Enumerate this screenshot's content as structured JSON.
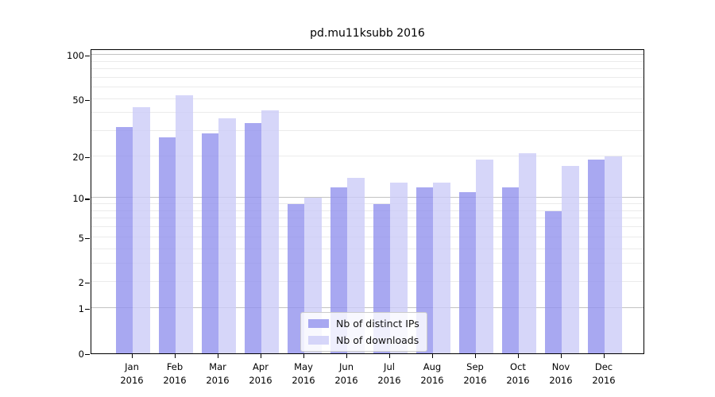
{
  "title": "pd.mu11ksubb 2016",
  "chart_data": {
    "type": "bar",
    "title": "pd.mu11ksubb 2016",
    "categories": [
      "Jan 2016",
      "Feb 2016",
      "Mar 2016",
      "Apr 2016",
      "May 2016",
      "Jun 2016",
      "Jul 2016",
      "Aug 2016",
      "Sep 2016",
      "Oct 2016",
      "Nov 2016",
      "Dec 2016"
    ],
    "x_tick_month": [
      "Jan",
      "Feb",
      "Mar",
      "Apr",
      "May",
      "Jun",
      "Jul",
      "Aug",
      "Sep",
      "Oct",
      "Nov",
      "Dec"
    ],
    "x_tick_year": "2016",
    "series": [
      {
        "name": "Nb of distinct IPs",
        "color": "#9292ee",
        "alpha": 0.8,
        "values": [
          32,
          27,
          29,
          34,
          9,
          12,
          9,
          12,
          11,
          12,
          8,
          19
        ]
      },
      {
        "name": "Nb of downloads",
        "color": "#ccccf7",
        "alpha": 0.8,
        "values": [
          44,
          53,
          37,
          42,
          10,
          14,
          13,
          13,
          19,
          21,
          17,
          20
        ]
      }
    ],
    "yscale": "log1p",
    "ylim": [
      0,
      112
    ],
    "ytick_values": [
      100,
      50,
      20,
      10,
      5,
      2,
      1,
      0
    ],
    "ytick_labels": [
      "100",
      "50",
      "20",
      "10",
      "5",
      "2",
      "1",
      "0"
    ],
    "major_gridlines": [
      1,
      10,
      100
    ],
    "minor_gridlines": [
      2,
      3,
      4,
      5,
      6,
      7,
      8,
      9,
      20,
      30,
      40,
      50,
      60,
      70,
      80,
      90
    ],
    "grid": true,
    "legend_position": "lower center",
    "xlabel": "",
    "ylabel": ""
  }
}
